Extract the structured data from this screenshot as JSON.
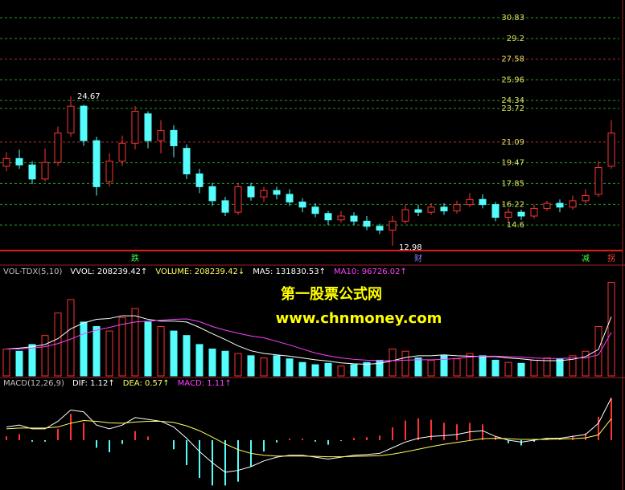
{
  "chart_data": [
    {
      "type": "candlestick",
      "open": [
        19.2,
        19.8,
        19.3,
        18.2,
        19.5,
        21.8,
        23.9,
        21.2,
        18.0,
        19.6,
        21.0,
        23.3,
        21.2,
        22.0,
        20.6,
        18.6,
        17.6,
        16.5,
        15.6,
        17.6,
        16.8,
        17.3,
        17.0,
        16.4,
        16.0,
        15.5,
        15.0,
        15.3,
        14.9,
        14.5,
        14.2,
        14.9,
        15.8,
        15.6,
        16.0,
        15.7,
        16.2,
        16.6,
        16.2,
        15.2,
        15.6,
        15.3,
        15.9,
        16.3,
        16.0,
        16.5,
        17.0,
        19.2
      ],
      "close": [
        19.8,
        19.3,
        18.2,
        19.5,
        21.8,
        23.9,
        21.2,
        17.6,
        19.6,
        21.0,
        23.5,
        21.2,
        22.0,
        20.8,
        18.6,
        17.6,
        16.5,
        15.6,
        17.6,
        16.8,
        17.3,
        17.0,
        16.4,
        16.0,
        15.5,
        15.0,
        15.3,
        14.9,
        14.5,
        14.2,
        14.9,
        15.8,
        15.6,
        16.0,
        15.7,
        16.2,
        16.6,
        16.2,
        15.2,
        15.6,
        15.3,
        15.9,
        16.3,
        16.0,
        16.5,
        16.9,
        19.1,
        21.8
      ],
      "high": [
        20.3,
        20.5,
        19.6,
        20.6,
        22.3,
        24.67,
        24.0,
        21.5,
        20.2,
        21.6,
        23.9,
        23.5,
        22.8,
        22.4,
        20.9,
        19.0,
        17.9,
        16.8,
        17.9,
        17.9,
        17.6,
        17.6,
        17.4,
        16.7,
        16.3,
        15.7,
        15.7,
        15.6,
        15.3,
        14.7,
        15.3,
        16.2,
        16.2,
        16.3,
        16.3,
        16.5,
        17.1,
        17.0,
        16.4,
        15.9,
        15.8,
        16.2,
        16.5,
        16.6,
        16.9,
        17.4,
        19.6,
        22.8
      ],
      "low": [
        18.8,
        19.0,
        17.8,
        18.0,
        19.2,
        21.5,
        20.8,
        16.9,
        17.6,
        19.2,
        20.5,
        20.6,
        20.2,
        19.9,
        18.2,
        17.1,
        16.1,
        15.3,
        15.4,
        16.5,
        16.4,
        16.6,
        16.1,
        15.6,
        15.2,
        14.6,
        14.8,
        14.6,
        14.2,
        13.9,
        12.98,
        14.7,
        15.3,
        15.4,
        15.4,
        15.5,
        16.0,
        15.9,
        14.9,
        14.9,
        15.0,
        15.1,
        15.7,
        15.6,
        15.8,
        16.3,
        16.8,
        19.0
      ],
      "up_color": "#ff3232",
      "down_color": "#54fcfc",
      "ylim": [
        12.72,
        32.21
      ],
      "yticks": [
        30.83,
        29.2,
        27.58,
        25.96,
        24.34,
        23.72,
        21.09,
        19.47,
        17.85,
        16.22,
        14.6
      ],
      "grid": true,
      "grid_color": "#1fa01f",
      "grid_highlight_color": "#b03030",
      "grid_highlight": [
        2,
        6
      ],
      "annotations": [
        24.67,
        12.98
      ],
      "markers": [
        {
          "index": 10,
          "label": "跌",
          "color": "#40ff40"
        },
        {
          "index": 32,
          "label": "财",
          "color": "#8080ff"
        },
        {
          "index": 45,
          "label": "减",
          "color": "#40ff40"
        },
        {
          "index": 47,
          "label": "拐",
          "color": "#ff4040"
        }
      ]
    },
    {
      "type": "volume",
      "header": [
        {
          "text": "VOL-TDX(5,10)",
          "color": "#c0c0c0"
        },
        {
          "text": "VVOL: 208239.42↑",
          "color": "#ffffff"
        },
        {
          "text": "VOLUME: 208239.42↓",
          "color": "#ffff60"
        },
        {
          "text": "MA5: 131830.53↑",
          "color": "#ffffff"
        },
        {
          "text": "MA10: 96726.02↑",
          "color": "#ff40ff"
        }
      ],
      "values": [
        60000,
        55000,
        70000,
        90000,
        140000,
        170000,
        120000,
        110000,
        100000,
        130000,
        150000,
        120000,
        110000,
        100000,
        90000,
        70000,
        60000,
        55000,
        50000,
        45000,
        40000,
        45000,
        38000,
        30000,
        25000,
        28000,
        22000,
        25000,
        30000,
        35000,
        60000,
        55000,
        40000,
        35000,
        45000,
        38000,
        50000,
        45000,
        35000,
        30000,
        28000,
        35000,
        40000,
        38000,
        45000,
        55000,
        110000,
        208239.42
      ],
      "series": [
        {
          "name": "MA5",
          "color": "#ffffff",
          "values": [
            60000,
            62000,
            65000,
            70000,
            83000,
            105000,
            118000,
            126000,
            128000,
            134000,
            134000,
            126000,
            122000,
            122000,
            120000,
            108000,
            94000,
            81000,
            67000,
            56000,
            50000,
            47000,
            44000,
            40000,
            36000,
            33000,
            29000,
            27000,
            26000,
            28000,
            34000,
            41000,
            45000,
            45000,
            47000,
            45000,
            44000,
            43000,
            43000,
            40000,
            38000,
            35000,
            34000,
            34000,
            37000,
            43000,
            59000,
            131830.53
          ]
        },
        {
          "name": "MA10",
          "color": "#ff40ff",
          "values": [
            60000,
            60000,
            62000,
            65000,
            72000,
            82000,
            94000,
            102000,
            108000,
            115000,
            120000,
            122000,
            124000,
            126000,
            127000,
            121000,
            110000,
            102000,
            95000,
            89000,
            85000,
            77000,
            69000,
            60000,
            51000,
            45000,
            40000,
            37000,
            35000,
            34000,
            34000,
            35000,
            36000,
            36000,
            37000,
            39000,
            42000,
            44000,
            44000,
            43000,
            42000,
            40000,
            39000,
            39000,
            40000,
            40000,
            47000,
            96726.02
          ]
        }
      ],
      "ylim": [
        0,
        220000
      ]
    },
    {
      "type": "macd",
      "header": [
        {
          "text": "MACD(12,26,9)",
          "color": "#c0c0c0"
        },
        {
          "text": "DIF: 1.12↑",
          "color": "#ffffff"
        },
        {
          "text": "DEA: 0.57↑",
          "color": "#ffff60"
        },
        {
          "text": "MACD: 1.11↑",
          "color": "#ff40ff"
        }
      ],
      "values": [
        0.1,
        0.16,
        -0.04,
        -0.04,
        0.3,
        0.7,
        0.46,
        -0.2,
        -0.32,
        -0.1,
        0.24,
        0.1,
        0.0,
        -0.24,
        -0.66,
        -1.0,
        -1.2,
        -1.2,
        -1.1,
        -0.7,
        -0.3,
        -0.06,
        0.04,
        0.04,
        -0.04,
        -0.12,
        -0.02,
        0.06,
        0.08,
        0.12,
        0.34,
        0.52,
        0.58,
        0.54,
        0.46,
        0.42,
        0.46,
        0.42,
        0.1,
        -0.08,
        -0.14,
        -0.04,
        0.06,
        0.04,
        0.12,
        0.18,
        0.62,
        1.11
      ],
      "up_color": "#ff3232",
      "down_color": "#54fcfc",
      "series": [
        {
          "name": "DIF",
          "color": "#ffffff",
          "values": [
            0.35,
            0.4,
            0.3,
            0.3,
            0.5,
            0.8,
            0.75,
            0.4,
            0.3,
            0.4,
            0.6,
            0.55,
            0.5,
            0.35,
            0.05,
            -0.3,
            -0.6,
            -0.85,
            -0.8,
            -0.7,
            -0.55,
            -0.45,
            -0.4,
            -0.4,
            -0.45,
            -0.5,
            -0.45,
            -0.4,
            -0.38,
            -0.35,
            -0.2,
            -0.05,
            0.05,
            0.1,
            0.12,
            0.15,
            0.22,
            0.25,
            0.1,
            0.0,
            -0.05,
            0.0,
            0.05,
            0.05,
            0.1,
            0.15,
            0.45,
            1.12
          ]
        },
        {
          "name": "DEA",
          "color": "#ffff60",
          "values": [
            0.3,
            0.32,
            0.32,
            0.32,
            0.35,
            0.45,
            0.52,
            0.5,
            0.46,
            0.45,
            0.48,
            0.5,
            0.5,
            0.47,
            0.38,
            0.25,
            0.08,
            -0.1,
            -0.25,
            -0.35,
            -0.4,
            -0.42,
            -0.42,
            -0.42,
            -0.43,
            -0.44,
            -0.44,
            -0.43,
            -0.42,
            -0.41,
            -0.37,
            -0.31,
            -0.24,
            -0.17,
            -0.11,
            -0.06,
            -0.01,
            0.04,
            0.05,
            0.04,
            0.02,
            0.02,
            0.02,
            0.03,
            0.04,
            0.06,
            0.14,
            0.57
          ]
        }
      ],
      "ylim": [
        -1.32,
        1.34
      ]
    }
  ],
  "watermark": [
    "第一股票公式网",
    "www.chnmoney.com"
  ]
}
